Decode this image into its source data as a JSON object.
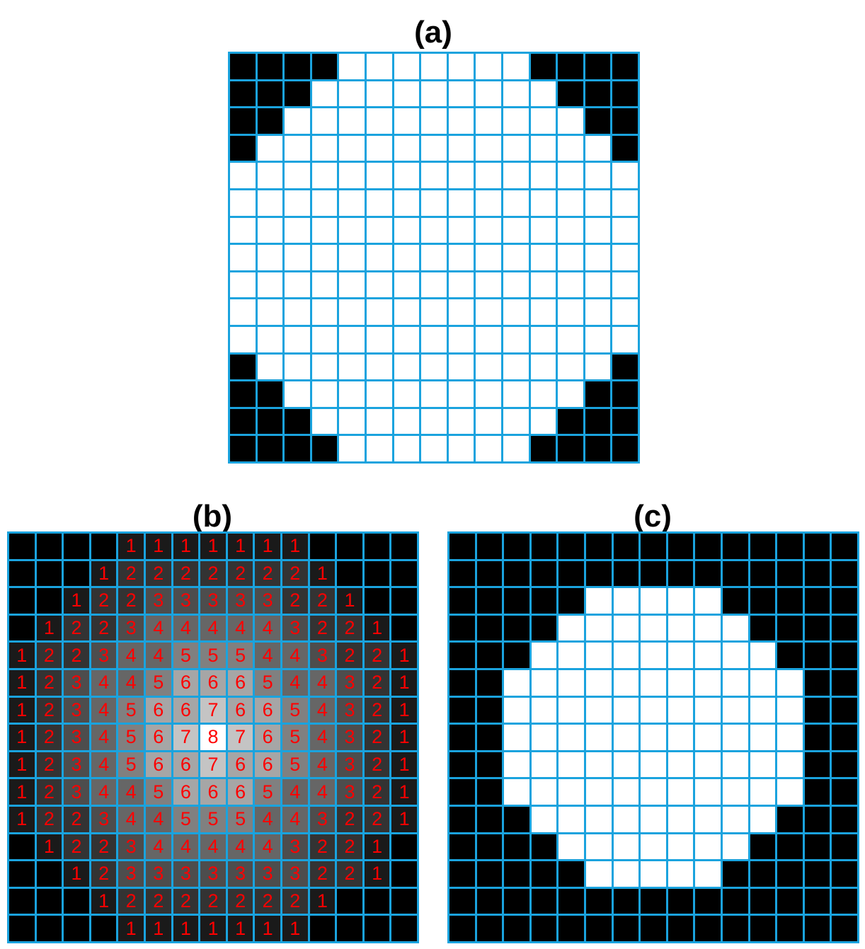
{
  "panels": [
    {
      "id": "a",
      "title": "(a)",
      "kind": "binary",
      "colors": {
        "0": "#000000",
        "1": "#ffffff"
      },
      "rows": [
        "000011111110000",
        "000111111111000",
        "001111111111100",
        "011111111111110",
        "111111111111111",
        "111111111111111",
        "111111111111111",
        "111111111111111",
        "111111111111111",
        "111111111111111",
        "111111111111111",
        "011111111111110",
        "001111111111100",
        "000111111111000",
        "000011111110000"
      ]
    },
    {
      "id": "b",
      "title": "(b)",
      "kind": "distance",
      "text_color": "#ff0000",
      "shade_colors": [
        "#000000",
        "#1a1a1a",
        "#333333",
        "#4d4d4d",
        "#666666",
        "#808080",
        "#a6a6a6",
        "#c4c4c4",
        "#ffffff"
      ],
      "rows": [
        "000011111110000",
        "000122222221000",
        "001223333322100",
        "012234444432210",
        "122344555443221",
        "123445666544321",
        "123456676654321",
        "123456787654321",
        "123456676654321",
        "123445666544321",
        "122344555443221",
        "012234444432210",
        "001233333332210",
        "000122222221000",
        "000011111110000"
      ]
    },
    {
      "id": "c",
      "title": "(c)",
      "kind": "binary",
      "colors": {
        "0": "#000000",
        "1": "#ffffff"
      },
      "rows": [
        "000000000000000",
        "000000000000000",
        "000001111100000",
        "000011111110000",
        "000111111111000",
        "001111111111100",
        "001111111111100",
        "001111111111100",
        "001111111111100",
        "001111111111100",
        "000111111111000",
        "000011111110000",
        "000001111100000",
        "000000000000000",
        "000000000000000"
      ]
    }
  ],
  "grid_line_color": "#1aa3de"
}
